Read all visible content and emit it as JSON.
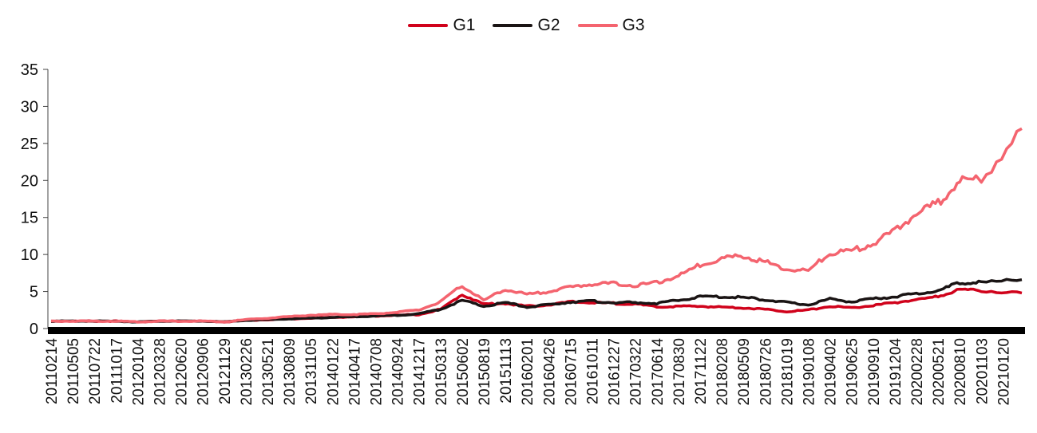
{
  "chart_data": {
    "type": "line",
    "title": "",
    "xlabel": "",
    "ylabel": "",
    "ylim": [
      0,
      35
    ],
    "yticks": [
      0,
      5,
      10,
      15,
      20,
      25,
      30,
      35
    ],
    "legend_position": "top-center",
    "grid": false,
    "x_tick_labels": [
      "20110214",
      "20110505",
      "20110722",
      "20111017",
      "20120104",
      "20120328",
      "20120620",
      "20120906",
      "20121129",
      "20130226",
      "20130521",
      "20130809",
      "20131105",
      "20140122",
      "20140417",
      "20140708",
      "20140924",
      "20141217",
      "20150313",
      "20150602",
      "20150819",
      "20151113",
      "20160201",
      "20160426",
      "20160715",
      "20161011",
      "20161227",
      "20170322",
      "20170614",
      "20170830",
      "20171122",
      "20180208",
      "20180509",
      "20180726",
      "20181019",
      "20190108",
      "20190402",
      "20190625",
      "20190910",
      "20191204",
      "20200228",
      "20200521",
      "20200810",
      "20201103",
      "20210120"
    ],
    "series": [
      {
        "name": "G1",
        "color": "#d0021b",
        "values": [
          1.0,
          1.0,
          1.0,
          1.0,
          0.9,
          1.0,
          1.0,
          1.0,
          0.9,
          1.1,
          1.2,
          1.3,
          1.4,
          1.5,
          1.6,
          1.7,
          1.8,
          1.9,
          2.6,
          4.6,
          3.3,
          3.4,
          3.0,
          3.2,
          3.6,
          3.5,
          3.4,
          3.3,
          2.9,
          3.0,
          3.0,
          2.9,
          2.8,
          2.6,
          2.3,
          2.5,
          3.0,
          2.8,
          3.1,
          3.5,
          3.9,
          4.3,
          5.3,
          5.1,
          4.8
        ]
      },
      {
        "name": "G2",
        "color": "#1a1414",
        "values": [
          1.0,
          1.0,
          1.0,
          1.0,
          0.9,
          1.0,
          1.0,
          1.0,
          0.9,
          1.1,
          1.2,
          1.3,
          1.4,
          1.5,
          1.6,
          1.7,
          1.8,
          2.0,
          2.6,
          3.8,
          3.0,
          3.5,
          2.9,
          3.2,
          3.6,
          3.7,
          3.5,
          3.5,
          3.4,
          3.8,
          4.3,
          4.3,
          4.2,
          3.9,
          3.5,
          3.2,
          4.0,
          3.6,
          4.0,
          4.3,
          4.7,
          5.1,
          6.2,
          6.2,
          6.6
        ]
      },
      {
        "name": "G3",
        "color": "#f4646f",
        "values": [
          1.0,
          1.0,
          1.0,
          1.0,
          0.9,
          1.0,
          1.0,
          1.0,
          0.9,
          1.2,
          1.4,
          1.6,
          1.8,
          1.9,
          1.9,
          2.0,
          2.2,
          2.5,
          3.6,
          5.8,
          3.8,
          5.3,
          4.6,
          5.0,
          5.6,
          6.0,
          6.1,
          5.8,
          6.2,
          7.1,
          8.6,
          9.5,
          9.8,
          9.0,
          8.0,
          7.8,
          10.2,
          10.5,
          11.5,
          13.2,
          15.5,
          17.0,
          20.0,
          20.0,
          27.0
        ]
      }
    ]
  }
}
